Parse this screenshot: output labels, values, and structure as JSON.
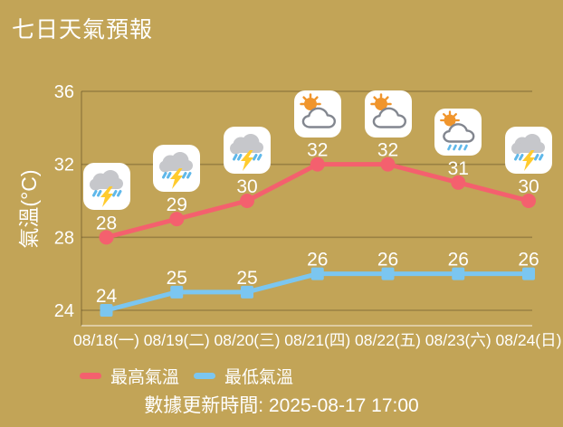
{
  "header": {
    "title": "七日天氣預報"
  },
  "chart_data": {
    "type": "line",
    "title": "七日天氣預報",
    "ylabel": "氣溫(°C)",
    "yticks": [
      36,
      32,
      28,
      24
    ],
    "ylim": [
      23,
      37
    ],
    "grid": true,
    "legend_position": "bottom",
    "categories": [
      "08/18(一)",
      "08/19(二)",
      "08/20(三)",
      "08/21(四)",
      "08/22(五)",
      "08/23(六)",
      "08/24(日)"
    ],
    "series": [
      {
        "name": "最高氣溫",
        "color": "#F4606E",
        "marker": "circle",
        "values": [
          28,
          29,
          30,
          32,
          32,
          31,
          30
        ]
      },
      {
        "name": "最低氣溫",
        "color": "#7BC6F0",
        "marker": "square",
        "values": [
          24,
          25,
          25,
          26,
          26,
          26,
          26
        ]
      }
    ],
    "day_icons": [
      "thunderstorm",
      "thunderstorm",
      "thunderstorm",
      "partly-cloudy",
      "partly-cloudy",
      "partly-cloudy-rain",
      "thunderstorm"
    ]
  },
  "footer": {
    "updated": "數據更新時間: 2025-08-17 17:00"
  },
  "colors": {
    "background": "#C2A457",
    "text": "#FFFFFF",
    "gridline": "rgba(70,57,25,0.32)",
    "baseline": "rgba(255,255,255,0.6)"
  }
}
